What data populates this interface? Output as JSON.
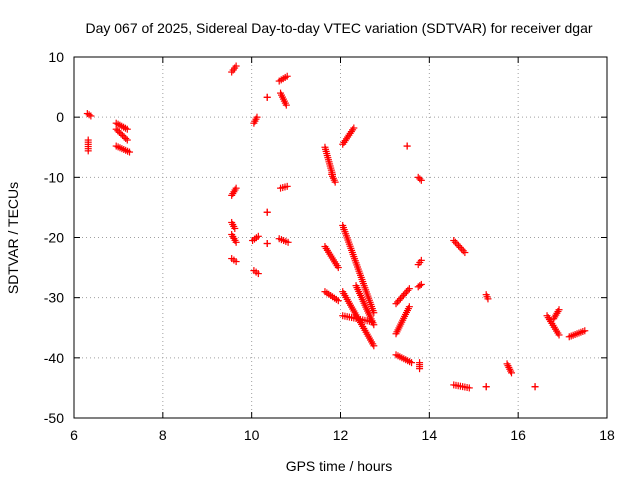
{
  "chart_data": {
    "type": "scatter",
    "title": "Day 067 of 2025, Sidereal Day-to-day VTEC variation (SDTVAR) for receiver dgar",
    "xlabel": "GPS time / hours",
    "ylabel": "SDTVAR / TECUs",
    "xlim": [
      6,
      18
    ],
    "ylim": [
      -50,
      10
    ],
    "xticks": [
      6,
      8,
      10,
      12,
      14,
      16,
      18
    ],
    "yticks": [
      -50,
      -40,
      -30,
      -20,
      -10,
      0,
      10
    ],
    "grid": true,
    "marker": "+",
    "color": "#ff0000",
    "segments": [
      {
        "x": [
          6.3,
          6.38
        ],
        "y": [
          0.6,
          0.2
        ]
      },
      {
        "x": [
          6.32,
          6.32
        ],
        "y": [
          -3.8,
          -5.6
        ]
      },
      {
        "x": [
          6.95,
          7.2
        ],
        "y": [
          -1.0,
          -2.0
        ]
      },
      {
        "x": [
          6.95,
          7.2
        ],
        "y": [
          -2.0,
          -3.8
        ]
      },
      {
        "x": [
          6.95,
          7.25
        ],
        "y": [
          -4.8,
          -5.8
        ]
      },
      {
        "x": [
          9.55,
          9.65
        ],
        "y": [
          7.5,
          8.5
        ]
      },
      {
        "x": [
          9.55,
          9.65
        ],
        "y": [
          -13.0,
          -11.8
        ]
      },
      {
        "x": [
          9.55,
          9.62
        ],
        "y": [
          -17.5,
          -18.5
        ]
      },
      {
        "x": [
          9.55,
          9.65
        ],
        "y": [
          -19.5,
          -20.8
        ]
      },
      {
        "x": [
          9.55,
          9.65
        ],
        "y": [
          -23.5,
          -24.0
        ]
      },
      {
        "x": [
          10.35,
          10.35
        ],
        "y": [
          3.3,
          3.3
        ]
      },
      {
        "x": [
          10.05,
          10.12
        ],
        "y": [
          -1.0,
          0.0
        ]
      },
      {
        "x": [
          10.02,
          10.15
        ],
        "y": [
          -20.5,
          -19.8
        ]
      },
      {
        "x": [
          10.05,
          10.15
        ],
        "y": [
          -25.5,
          -26.0
        ]
      },
      {
        "x": [
          10.35,
          10.35
        ],
        "y": [
          -15.8,
          -15.8
        ]
      },
      {
        "x": [
          10.35,
          10.35
        ],
        "y": [
          -21.0,
          -21.0
        ]
      },
      {
        "x": [
          10.62,
          10.8
        ],
        "y": [
          6.0,
          6.8
        ]
      },
      {
        "x": [
          10.65,
          10.78
        ],
        "y": [
          4.0,
          2.0
        ]
      },
      {
        "x": [
          10.65,
          10.8
        ],
        "y": [
          -11.8,
          -11.5
        ]
      },
      {
        "x": [
          10.62,
          10.82
        ],
        "y": [
          -20.2,
          -20.8
        ]
      },
      {
        "x": [
          11.65,
          11.82
        ],
        "y": [
          -5.0,
          -9.5
        ]
      },
      {
        "x": [
          11.8,
          11.88
        ],
        "y": [
          -9.5,
          -10.8
        ]
      },
      {
        "x": [
          11.65,
          11.95
        ],
        "y": [
          -21.5,
          -25.0
        ]
      },
      {
        "x": [
          11.65,
          11.95
        ],
        "y": [
          -29.0,
          -30.5
        ]
      },
      {
        "x": [
          12.05,
          12.3
        ],
        "y": [
          -4.5,
          -1.8
        ]
      },
      {
        "x": [
          12.05,
          12.75
        ],
        "y": [
          -18.0,
          -32.5
        ]
      },
      {
        "x": [
          12.05,
          12.75
        ],
        "y": [
          -29.0,
          -38.0
        ]
      },
      {
        "x": [
          12.05,
          12.7
        ],
        "y": [
          -33.0,
          -34.0
        ]
      },
      {
        "x": [
          12.35,
          12.75
        ],
        "y": [
          -28.0,
          -34.5
        ]
      },
      {
        "x": [
          13.25,
          13.55
        ],
        "y": [
          -31.0,
          -28.5
        ]
      },
      {
        "x": [
          13.25,
          13.55
        ],
        "y": [
          -36.0,
          -31.5
        ]
      },
      {
        "x": [
          13.25,
          13.6
        ],
        "y": [
          -39.5,
          -40.8
        ]
      },
      {
        "x": [
          13.5,
          13.5
        ],
        "y": [
          -4.8,
          -4.8
        ]
      },
      {
        "x": [
          13.75,
          13.82
        ],
        "y": [
          -10.0,
          -10.5
        ]
      },
      {
        "x": [
          13.75,
          13.82
        ],
        "y": [
          -24.5,
          -23.8
        ]
      },
      {
        "x": [
          13.75,
          13.82
        ],
        "y": [
          -28.2,
          -27.8
        ]
      },
      {
        "x": [
          13.78,
          13.78
        ],
        "y": [
          -40.8,
          -41.8
        ]
      },
      {
        "x": [
          14.55,
          14.8
        ],
        "y": [
          -20.5,
          -22.5
        ]
      },
      {
        "x": [
          14.55,
          14.9
        ],
        "y": [
          -44.5,
          -45.0
        ]
      },
      {
        "x": [
          15.28,
          15.32
        ],
        "y": [
          -29.5,
          -30.2
        ]
      },
      {
        "x": [
          15.28,
          15.28
        ],
        "y": [
          -44.8,
          -44.8
        ]
      },
      {
        "x": [
          15.75,
          15.85
        ],
        "y": [
          -41.0,
          -42.5
        ]
      },
      {
        "x": [
          16.38,
          16.38
        ],
        "y": [
          -44.8,
          -44.8
        ]
      },
      {
        "x": [
          16.65,
          16.92
        ],
        "y": [
          -33.0,
          -36.2
        ]
      },
      {
        "x": [
          16.8,
          16.92
        ],
        "y": [
          -33.5,
          -32.0
        ]
      },
      {
        "x": [
          17.15,
          17.5
        ],
        "y": [
          -36.5,
          -35.5
        ]
      }
    ]
  }
}
